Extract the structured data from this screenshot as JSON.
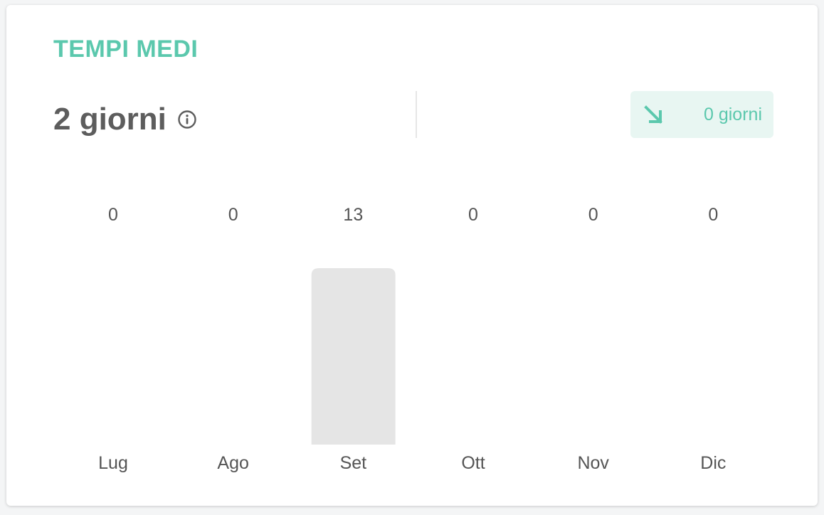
{
  "card": {
    "title": "TEMPI MEDI",
    "metric_value": "2 giorni",
    "info_icon": "info-circle-icon",
    "trend": {
      "icon": "arrow-down-right-icon",
      "text": "0 giorni"
    }
  },
  "colors": {
    "accent": "#5bc8ad",
    "accent_bg": "#e8f6f2",
    "bar": "#e5e5e5",
    "text": "#555555"
  },
  "chart_data": {
    "type": "bar",
    "categories": [
      "Lug",
      "Ago",
      "Set",
      "Ott",
      "Nov",
      "Dic"
    ],
    "values": [
      0,
      0,
      13,
      0,
      0,
      0
    ],
    "value_labels": [
      "0",
      "0",
      "13",
      "0",
      "0",
      "0"
    ],
    "title": "",
    "xlabel": "",
    "ylabel": "",
    "ylim": [
      0,
      13
    ],
    "grid": false
  }
}
